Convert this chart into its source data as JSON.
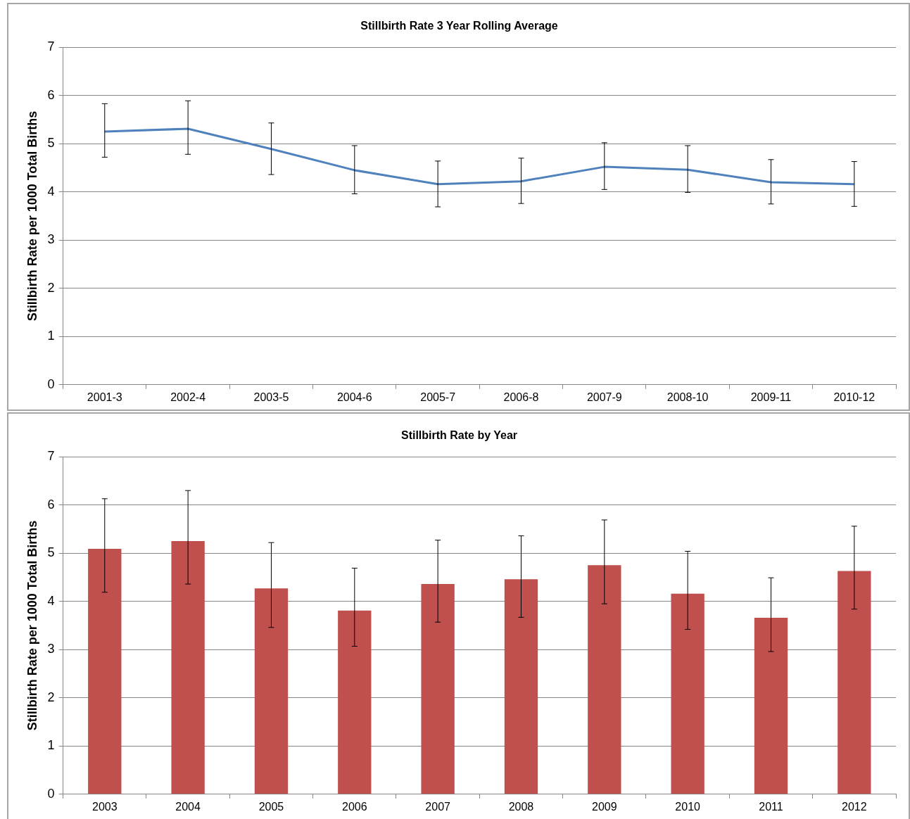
{
  "chart_data": [
    {
      "type": "line",
      "title": "Stillbirth Rate 3 Year Rolling Average",
      "ylabel": "Stillbirth Rate per 1000 Total Births",
      "categories": [
        "2001-3",
        "2002-4",
        "2003-5",
        "2004-6",
        "2005-7",
        "2006-8",
        "2007-9",
        "2008-10",
        "2009-11",
        "2010-12"
      ],
      "values": [
        5.25,
        5.31,
        4.89,
        4.45,
        4.16,
        4.22,
        4.52,
        4.46,
        4.2,
        4.16
      ],
      "errors": [
        [
          4.72,
          5.83
        ],
        [
          4.78,
          5.89
        ],
        [
          4.36,
          5.43
        ],
        [
          3.96,
          4.96
        ],
        [
          3.69,
          4.64
        ],
        [
          3.76,
          4.7
        ],
        [
          4.05,
          5.02
        ],
        [
          3.99,
          4.96
        ],
        [
          3.75,
          4.67
        ],
        [
          3.7,
          4.63
        ]
      ],
      "color": "#4f81bd",
      "ylim": [
        0,
        7
      ],
      "yticks": [
        0,
        1,
        2,
        3,
        4,
        5,
        6,
        7
      ],
      "grid": "y",
      "legend": false,
      "marker": "none"
    },
    {
      "type": "bar",
      "title": "Stillbirth Rate by Year",
      "ylabel": "Stillbirth Rate per 1000 Total Births",
      "categories": [
        "2003",
        "2004",
        "2005",
        "2006",
        "2007",
        "2008",
        "2009",
        "2010",
        "2011",
        "2012"
      ],
      "values": [
        5.09,
        5.25,
        4.27,
        3.81,
        4.36,
        4.46,
        4.75,
        4.16,
        3.66,
        4.63
      ],
      "errors": [
        [
          4.19,
          6.13
        ],
        [
          4.36,
          6.3
        ],
        [
          3.46,
          5.22
        ],
        [
          3.07,
          4.69
        ],
        [
          3.57,
          5.27
        ],
        [
          3.67,
          5.36
        ],
        [
          3.95,
          5.69
        ],
        [
          3.42,
          5.04
        ],
        [
          2.96,
          4.49
        ],
        [
          3.84,
          5.56
        ]
      ],
      "color": "#c0504d",
      "ylim": [
        0,
        7
      ],
      "yticks": [
        0,
        1,
        2,
        3,
        4,
        5,
        6,
        7
      ],
      "grid": "y",
      "legend": false
    }
  ]
}
